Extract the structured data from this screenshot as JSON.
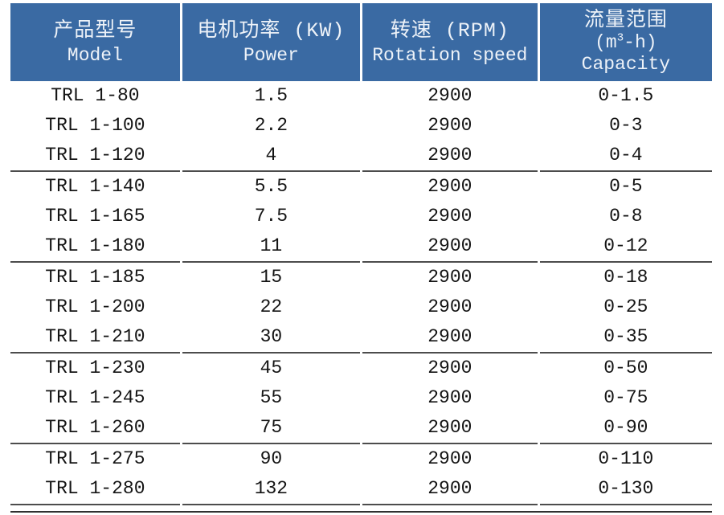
{
  "theme": {
    "header_background": "#3a6aa3",
    "header_text_color": "#edf2f8",
    "body_text_color": "#141414",
    "separator_color": "#4c4c4c"
  },
  "table": {
    "columns": [
      {
        "zh": "产品型号",
        "en": "Model"
      },
      {
        "zh": "电机功率 (KW)",
        "en": "Power"
      },
      {
        "zh": "转速 (RPM)",
        "en": "Rotation speed"
      },
      {
        "zh": "流量范围",
        "unit_prefix": "(m",
        "unit_sup": "3",
        "unit_suffix": "-h)",
        "en": "Capacity"
      }
    ],
    "rows": [
      [
        "TRL 1-80",
        "1.5",
        "2900",
        "0-1.5"
      ],
      [
        "TRL 1-100",
        "2.2",
        "2900",
        "0-3"
      ],
      [
        "TRL 1-120",
        "4",
        "2900",
        "0-4"
      ],
      [
        "TRL 1-140",
        "5.5",
        "2900",
        "0-5"
      ],
      [
        "TRL 1-165",
        "7.5",
        "2900",
        "0-8"
      ],
      [
        "TRL 1-180",
        "11",
        "2900",
        "0-12"
      ],
      [
        "TRL 1-185",
        "15",
        "2900",
        "0-18"
      ],
      [
        "TRL 1-200",
        "22",
        "2900",
        "0-25"
      ],
      [
        "TRL 1-210",
        "30",
        "2900",
        "0-35"
      ],
      [
        "TRL 1-230",
        "45",
        "2900",
        "0-50"
      ],
      [
        "TRL 1-245",
        "55",
        "2900",
        "0-75"
      ],
      [
        "TRL 1-260",
        "75",
        "2900",
        "0-90"
      ],
      [
        "TRL 1-275",
        "90",
        "2900",
        "0-110"
      ],
      [
        "TRL 1-280",
        "132",
        "2900",
        "0-130"
      ]
    ],
    "separator_after": [
      2,
      5,
      8,
      11,
      13
    ]
  }
}
